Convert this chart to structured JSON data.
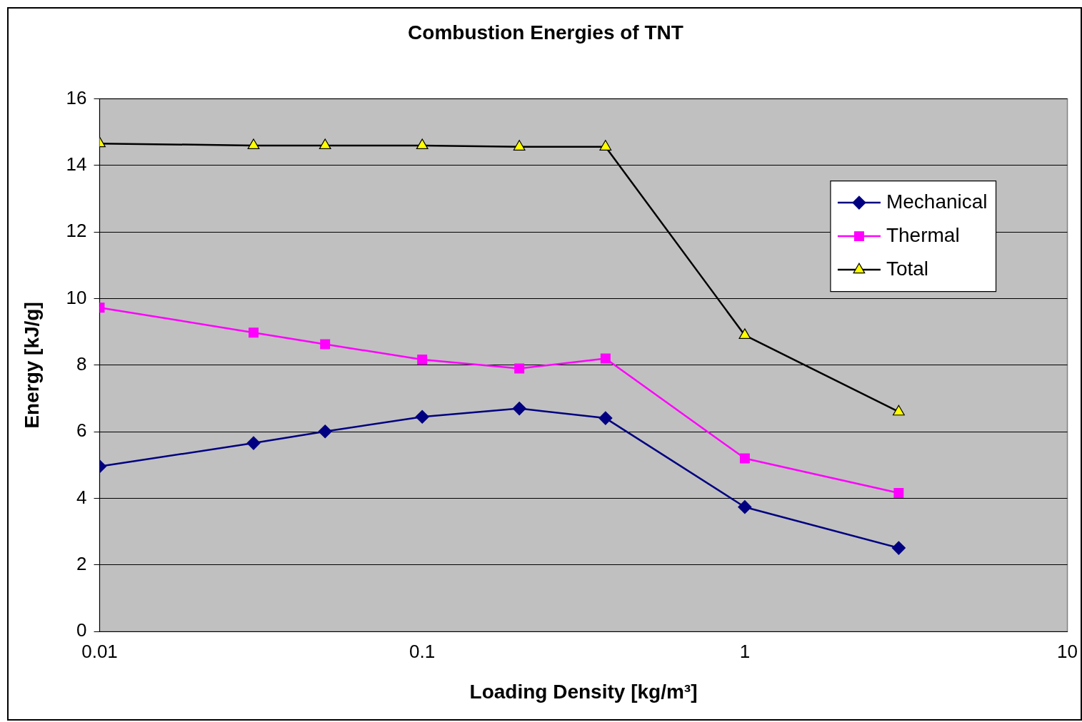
{
  "chart_data": {
    "type": "line",
    "title": "Combustion Energies of TNT",
    "xlabel": "Loading Density [kg/m³]",
    "ylabel": "Energy [kJ/g]",
    "x": [
      0.01,
      0.03,
      0.05,
      0.1,
      0.2,
      0.37,
      1,
      3
    ],
    "series": [
      {
        "name": "Mechanical",
        "color": "#000080",
        "marker": "diamond",
        "values": [
          4.96,
          5.66,
          6.01,
          6.45,
          6.7,
          6.41,
          3.74,
          2.51
        ]
      },
      {
        "name": "Thermal",
        "color": "#ff00ff",
        "marker": "square",
        "values": [
          9.73,
          8.98,
          8.63,
          8.17,
          7.9,
          8.2,
          5.2,
          4.16
        ]
      },
      {
        "name": "Total",
        "color": "#000000",
        "marker": "triangle",
        "values": [
          14.66,
          14.6,
          14.6,
          14.6,
          14.56,
          14.56,
          8.9,
          6.6
        ]
      }
    ],
    "log": "x",
    "xlim": [
      0.01,
      10
    ],
    "xticks": [
      0.01,
      0.1,
      1,
      10
    ],
    "ylim": [
      0,
      16
    ],
    "yticks": [
      0,
      2,
      4,
      6,
      8,
      10,
      12,
      14,
      16
    ],
    "grid": "y",
    "legend": "top right",
    "line_style": "solid"
  }
}
